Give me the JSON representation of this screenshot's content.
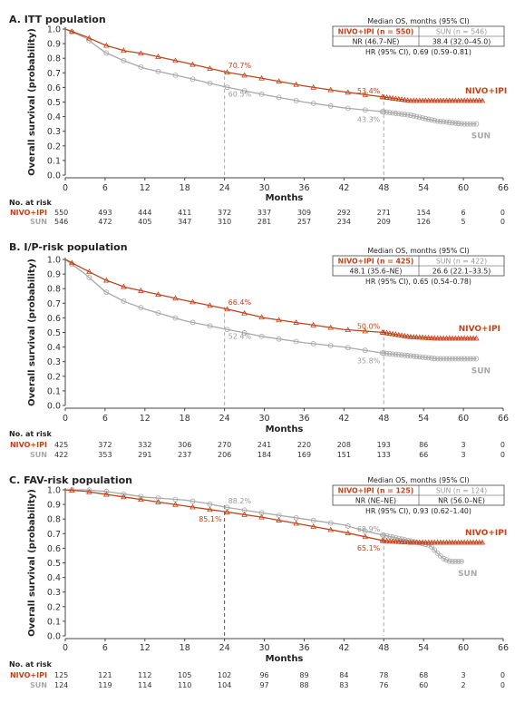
{
  "chart_data": [
    {
      "type": "line",
      "title": "A. ITT population",
      "xlabel": "Months",
      "ylabel": "Overall survival (probability)",
      "xlim": [
        0,
        66
      ],
      "ylim": [
        0,
        1
      ],
      "xticks": [
        0,
        6,
        12,
        18,
        24,
        30,
        36,
        42,
        48,
        54,
        60,
        66
      ],
      "yticks": [
        0.0,
        0.1,
        0.2,
        0.3,
        0.4,
        0.5,
        0.6,
        0.7,
        0.8,
        0.9,
        1.0
      ],
      "series": [
        {
          "name": "NIVO+IPI",
          "color": "#c0441a",
          "marker": "triangle",
          "x": [
            0,
            3,
            6,
            9,
            12,
            18,
            24,
            30,
            36,
            42,
            48,
            52,
            56,
            60,
            63
          ],
          "y": [
            1.0,
            0.95,
            0.89,
            0.85,
            0.83,
            0.77,
            0.707,
            0.66,
            0.61,
            0.57,
            0.534,
            0.51,
            0.51,
            0.51,
            0.51
          ]
        },
        {
          "name": "SUN",
          "color": "#a8a8a8",
          "marker": "circle",
          "x": [
            0,
            3,
            6,
            9,
            12,
            18,
            24,
            30,
            36,
            42,
            48,
            52,
            56,
            60,
            62
          ],
          "y": [
            1.0,
            0.94,
            0.84,
            0.78,
            0.73,
            0.67,
            0.605,
            0.55,
            0.5,
            0.46,
            0.433,
            0.41,
            0.37,
            0.35,
            0.35
          ]
        }
      ],
      "annotations": [
        {
          "x": 24,
          "y": 0.707,
          "text": "70.7%",
          "series": "NIVO+IPI"
        },
        {
          "x": 24,
          "y": 0.605,
          "text": "60.5%",
          "series": "SUN"
        },
        {
          "x": 48,
          "y": 0.534,
          "text": "53.4%",
          "series": "NIVO+IPI"
        },
        {
          "x": 48,
          "y": 0.433,
          "text": "43.3%",
          "series": "SUN"
        }
      ],
      "legend_box": {
        "header": "Median OS, months (95% CI)",
        "nivo_head": "NIVO+IPI (n = 550)",
        "sun_head": "SUN (n = 546)",
        "nivo_val": "NR (46.7–NE)",
        "sun_val": "38.4 (32.0–45.0)",
        "hr": "HR (95% CI), 0.69 (0.59–0.81)"
      },
      "at_risk": {
        "header": "No. at risk",
        "times": [
          0,
          6,
          12,
          18,
          24,
          30,
          36,
          42,
          48,
          54,
          60,
          66
        ],
        "rows": [
          {
            "name": "NIVO+IPI",
            "values": [
              "550",
              "493",
              "444",
              "411",
              "372",
              "337",
              "309",
              "292",
              "271",
              "154",
              "6",
              "0"
            ]
          },
          {
            "name": "SUN",
            "values": [
              "546",
              "472",
              "405",
              "347",
              "310",
              "281",
              "257",
              "234",
              "209",
              "126",
              "5",
              "0"
            ]
          }
        ]
      }
    },
    {
      "type": "line",
      "title": "B. I/P-risk population",
      "xlabel": "Months",
      "ylabel": "Overall survival (probability)",
      "xlim": [
        0,
        66
      ],
      "ylim": [
        0,
        1
      ],
      "xticks": [
        0,
        6,
        12,
        18,
        24,
        30,
        36,
        42,
        48,
        54,
        60,
        66
      ],
      "yticks": [
        0.0,
        0.1,
        0.2,
        0.3,
        0.4,
        0.5,
        0.6,
        0.7,
        0.8,
        0.9,
        1.0
      ],
      "series": [
        {
          "name": "NIVO+IPI",
          "color": "#c0441a",
          "marker": "triangle",
          "x": [
            0,
            3,
            6,
            9,
            12,
            18,
            24,
            30,
            36,
            42,
            48,
            52,
            56,
            60,
            62
          ],
          "y": [
            1.0,
            0.93,
            0.86,
            0.81,
            0.78,
            0.72,
            0.664,
            0.6,
            0.56,
            0.52,
            0.5,
            0.47,
            0.46,
            0.46,
            0.46
          ]
        },
        {
          "name": "SUN",
          "color": "#a8a8a8",
          "marker": "circle",
          "x": [
            0,
            3,
            6,
            9,
            12,
            18,
            24,
            30,
            36,
            42,
            48,
            52,
            56,
            60,
            62
          ],
          "y": [
            1.0,
            0.9,
            0.78,
            0.71,
            0.66,
            0.58,
            0.524,
            0.47,
            0.43,
            0.4,
            0.358,
            0.34,
            0.32,
            0.32,
            0.32
          ]
        }
      ],
      "annotations": [
        {
          "x": 24,
          "y": 0.664,
          "text": "66.4%",
          "series": "NIVO+IPI"
        },
        {
          "x": 24,
          "y": 0.524,
          "text": "52.4%",
          "series": "SUN"
        },
        {
          "x": 48,
          "y": 0.5,
          "text": "50.0%",
          "series": "NIVO+IPI"
        },
        {
          "x": 48,
          "y": 0.358,
          "text": "35.8%",
          "series": "SUN"
        }
      ],
      "legend_box": {
        "header": "Median OS, months (95% CI)",
        "nivo_head": "NIVO+IPI (n = 425)",
        "sun_head": "SUN (n = 422)",
        "nivo_val": "48.1 (35.6–NE)",
        "sun_val": "26.6 (22.1–33.5)",
        "hr": "HR (95% CI), 0.65 (0.54–0.78)"
      },
      "at_risk": {
        "header": "No. at risk",
        "times": [
          0,
          6,
          12,
          18,
          24,
          30,
          36,
          42,
          48,
          54,
          60,
          66
        ],
        "rows": [
          {
            "name": "NIVO+IPI",
            "values": [
              "425",
              "372",
              "332",
              "306",
              "270",
              "241",
              "220",
              "208",
              "193",
              "86",
              "3",
              "0"
            ]
          },
          {
            "name": "SUN",
            "values": [
              "422",
              "353",
              "291",
              "237",
              "206",
              "184",
              "169",
              "151",
              "133",
              "66",
              "3",
              "0"
            ]
          }
        ]
      }
    },
    {
      "type": "line",
      "title": "C. FAV-risk population",
      "xlabel": "Months",
      "ylabel": "Overall survival (probability)",
      "xlim": [
        0,
        66
      ],
      "ylim": [
        0,
        1
      ],
      "xticks": [
        0,
        6,
        12,
        18,
        24,
        30,
        36,
        42,
        48,
        54,
        60,
        66
      ],
      "yticks": [
        0.0,
        0.1,
        0.2,
        0.3,
        0.4,
        0.5,
        0.6,
        0.7,
        0.8,
        0.9,
        1.0
      ],
      "series": [
        {
          "name": "NIVO+IPI",
          "color": "#c0441a",
          "marker": "triangle",
          "x": [
            0,
            3,
            6,
            9,
            12,
            15,
            18,
            21,
            24,
            30,
            36,
            42,
            48,
            52,
            56,
            60,
            63
          ],
          "y": [
            1.0,
            0.99,
            0.97,
            0.95,
            0.93,
            0.91,
            0.89,
            0.87,
            0.851,
            0.81,
            0.76,
            0.71,
            0.651,
            0.64,
            0.64,
            0.64,
            0.64
          ]
        },
        {
          "name": "SUN",
          "color": "#a8a8a8",
          "marker": "circle",
          "x": [
            0,
            3,
            6,
            9,
            12,
            15,
            18,
            21,
            24,
            30,
            36,
            42,
            45,
            48,
            52,
            55,
            56,
            57,
            58,
            60
          ],
          "y": [
            1.0,
            1.0,
            0.99,
            0.97,
            0.95,
            0.94,
            0.93,
            0.91,
            0.882,
            0.84,
            0.8,
            0.76,
            0.72,
            0.689,
            0.65,
            0.62,
            0.57,
            0.53,
            0.51,
            0.51
          ]
        }
      ],
      "annotations": [
        {
          "x": 24,
          "y": 0.882,
          "text": "88.2%",
          "series": "SUN"
        },
        {
          "x": 24,
          "y": 0.851,
          "text": "85.1%",
          "series": "NIVO+IPI"
        },
        {
          "x": 48,
          "y": 0.689,
          "text": "68.9%",
          "series": "SUN"
        },
        {
          "x": 48,
          "y": 0.651,
          "text": "65.1%",
          "series": "NIVO+IPI"
        }
      ],
      "legend_box": {
        "header": "Median OS, months (95% CI)",
        "nivo_head": "NIVO+IPI (n = 125)",
        "sun_head": "SUN (n = 124)",
        "nivo_val": "NR (NE–NE)",
        "sun_val": "NR (56.0–NE)",
        "hr": "HR (95% CI), 0.93 (0.62–1.40)"
      },
      "at_risk": {
        "header": "No. at risk",
        "times": [
          0,
          6,
          12,
          18,
          24,
          30,
          36,
          42,
          48,
          54,
          60,
          66
        ],
        "rows": [
          {
            "name": "NIVO+IPI",
            "values": [
              "125",
              "121",
              "112",
              "105",
              "102",
              "96",
              "89",
              "84",
              "78",
              "68",
              "3",
              "0"
            ]
          },
          {
            "name": "SUN",
            "values": [
              "124",
              "119",
              "114",
              "110",
              "104",
              "97",
              "88",
              "83",
              "76",
              "60",
              "2",
              "0"
            ]
          }
        ]
      }
    }
  ]
}
